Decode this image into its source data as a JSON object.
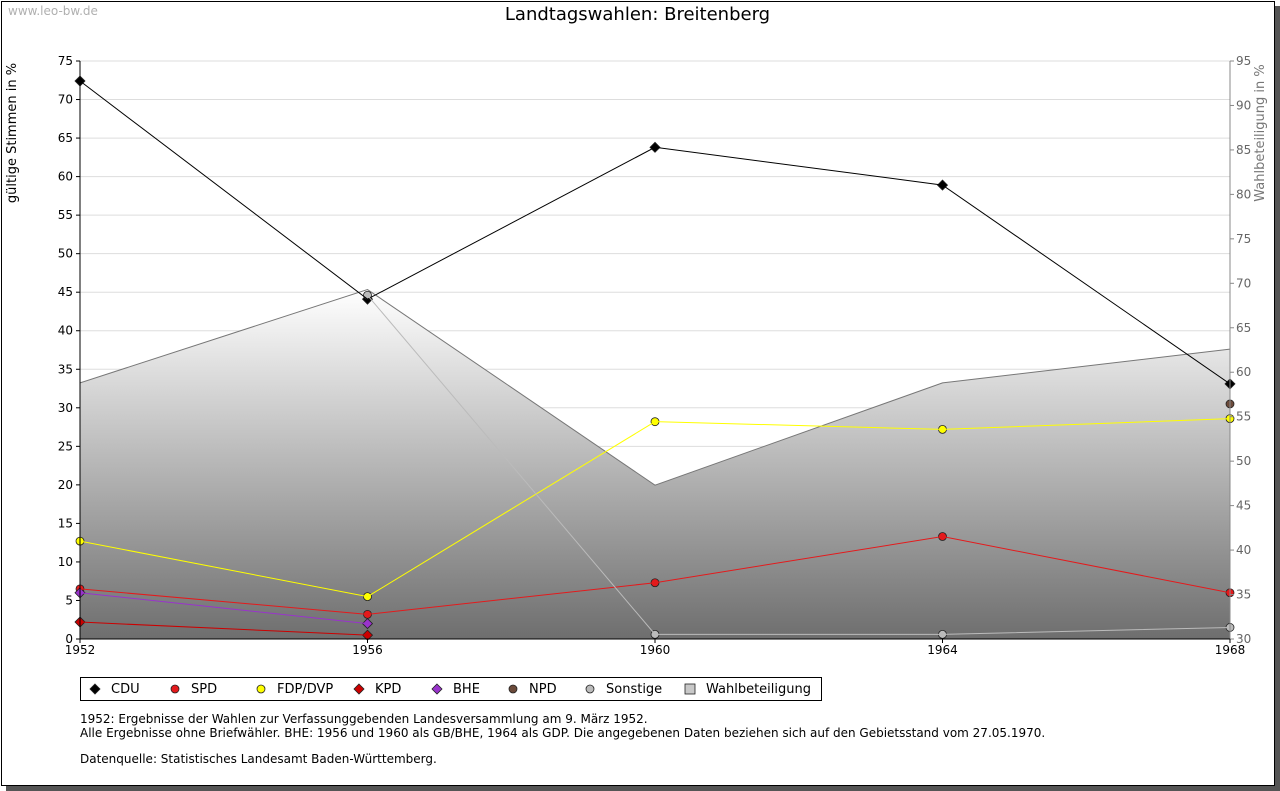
{
  "watermark": "www.leo-bw.de",
  "title": "Landtagswahlen: Breitenberg",
  "chart_data": {
    "type": "line",
    "title": "Landtagswahlen: Breitenberg",
    "xlabel": "",
    "ylabel": "gültige Stimmen in %",
    "y2label": "Wahlbeteiligung in %",
    "x": [
      1952,
      1956,
      1960,
      1964,
      1968
    ],
    "ylim": [
      0,
      75
    ],
    "y2lim": [
      30,
      95
    ],
    "yticks": [
      0,
      5,
      10,
      15,
      20,
      25,
      30,
      35,
      40,
      45,
      50,
      55,
      60,
      65,
      70,
      75
    ],
    "y2ticks": [
      30,
      35,
      40,
      45,
      50,
      55,
      60,
      65,
      70,
      75,
      80,
      85,
      90,
      95
    ],
    "grid": true,
    "series": [
      {
        "name": "CDU",
        "color": "#000000",
        "marker": "diamond",
        "values": [
          72.4,
          44.1,
          63.8,
          58.9,
          33.1
        ]
      },
      {
        "name": "SPD",
        "color": "#e41a1c",
        "marker": "circle",
        "values": [
          6.5,
          3.2,
          7.3,
          13.3,
          6.0
        ]
      },
      {
        "name": "FDP/DVP",
        "color": "#ffff00",
        "marker": "circle",
        "values": [
          12.7,
          5.5,
          28.2,
          27.2,
          28.6
        ]
      },
      {
        "name": "KPD",
        "color": "#cc0000",
        "marker": "diamond",
        "values": [
          2.2,
          0.5,
          null,
          null,
          null
        ]
      },
      {
        "name": "BHE",
        "color": "#9933cc",
        "marker": "diamond",
        "values": [
          6.0,
          2.0,
          null,
          null,
          null
        ]
      },
      {
        "name": "NPD",
        "color": "#6b4a3a",
        "marker": "circle",
        "values": [
          null,
          null,
          null,
          null,
          30.5
        ]
      },
      {
        "name": "Sonstige",
        "color": "#bbbbbb",
        "marker": "circle",
        "values": [
          null,
          44.6,
          0.6,
          0.6,
          1.5
        ]
      }
    ],
    "area": {
      "name": "Wahlbeteiligung",
      "axis": "y2",
      "values": [
        58.8,
        69.3,
        47.3,
        58.8,
        62.6
      ]
    }
  },
  "legend": [
    {
      "label": "CDU",
      "color": "#000000",
      "marker": "diamond"
    },
    {
      "label": "SPD",
      "color": "#e41a1c",
      "marker": "circle"
    },
    {
      "label": "FDP/DVP",
      "color": "#ffff00",
      "marker": "circle"
    },
    {
      "label": "KPD",
      "color": "#cc0000",
      "marker": "diamond"
    },
    {
      "label": "BHE",
      "color": "#9933cc",
      "marker": "diamond"
    },
    {
      "label": "NPD",
      "color": "#6b4a3a",
      "marker": "circle"
    },
    {
      "label": "Sonstige",
      "color": "#bbbbbb",
      "marker": "circle"
    },
    {
      "label": "Wahlbeteiligung",
      "color": "#c8c8c8",
      "marker": "square"
    }
  ],
  "notes": {
    "line1": "1952: Ergebnisse der Wahlen zur Verfassunggebenden Landesversammlung am 9. März 1952.",
    "line2": "Alle Ergebnisse ohne Briefwähler. BHE: 1956 und 1960 als GB/BHE, 1964 als GDP. Die angegebenen Daten beziehen sich auf den Gebietsstand vom 27.05.1970.",
    "source": "Datenquelle: Statistisches Landesamt Baden-Württemberg."
  }
}
